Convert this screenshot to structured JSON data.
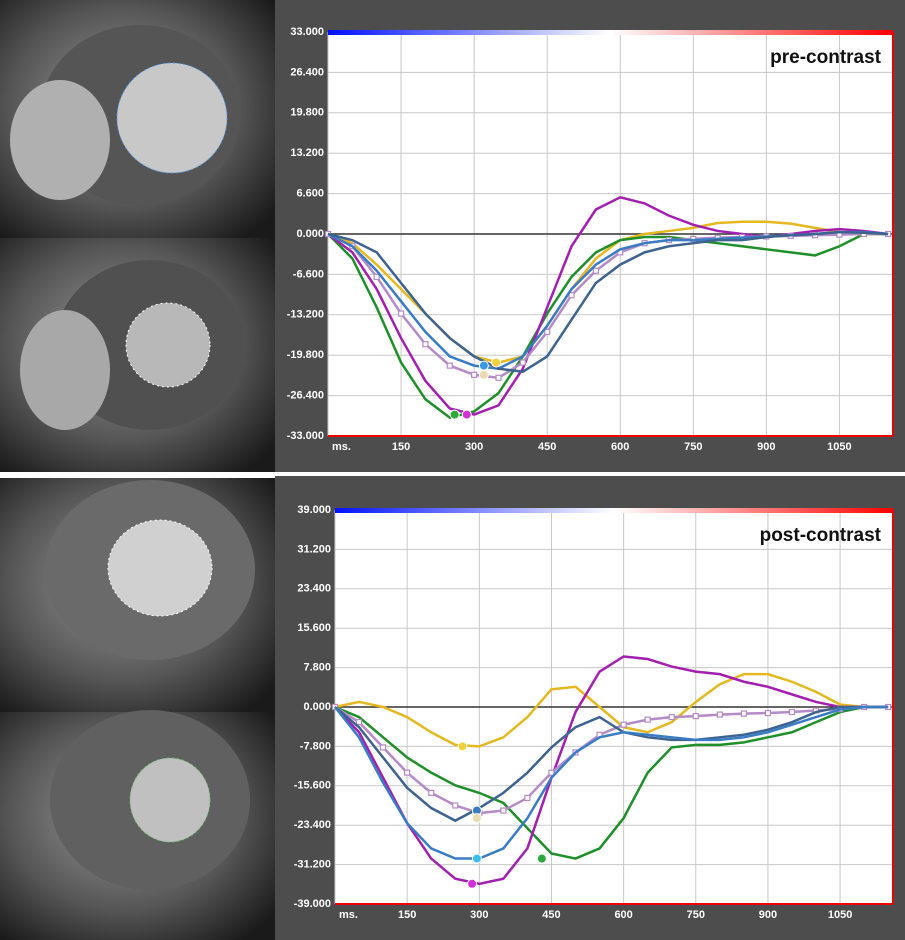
{
  "chart_data": [
    {
      "type": "line",
      "annotation": "pre-contrast",
      "x": [
        0,
        50,
        100,
        150,
        200,
        250,
        300,
        350,
        400,
        450,
        500,
        550,
        600,
        650,
        700,
        750,
        800,
        850,
        900,
        950,
        1000,
        1050,
        1100,
        1150
      ],
      "xlim": [
        0,
        1160
      ],
      "xticks": [
        {
          "value": 0,
          "label": "ms."
        },
        150,
        300,
        450,
        600,
        750,
        900,
        1050
      ],
      "ylim": [
        -33,
        33
      ],
      "yticks": [
        {
          "value": 33,
          "label": "33.000"
        },
        {
          "value": 26.4,
          "label": "26.400"
        },
        {
          "value": 19.8,
          "label": "19.800"
        },
        {
          "value": 13.2,
          "label": "13.200"
        },
        {
          "value": 6.6,
          "label": "6.600"
        },
        {
          "value": 0,
          "label": "0.000"
        },
        {
          "value": -6.6,
          "label": "-6.600"
        },
        {
          "value": -13.2,
          "label": "-13.200"
        },
        {
          "value": -19.8,
          "label": "-19.800"
        },
        {
          "value": -26.4,
          "label": "-26.400"
        },
        {
          "value": -33,
          "label": "-33.000"
        }
      ],
      "grid": true,
      "series": [
        {
          "color": "#e6b820",
          "values": [
            0,
            -1.5,
            -5,
            -9,
            -13,
            -17,
            -20,
            -21,
            -20,
            -15,
            -9,
            -4,
            -1,
            0,
            0.5,
            1,
            1.8,
            2,
            2,
            1.7,
            1,
            0.3,
            0,
            0
          ]
        },
        {
          "color": "#1f8f2a",
          "values": [
            0,
            -4,
            -12,
            -21,
            -27,
            -30,
            -29,
            -26,
            -20,
            -13,
            -7,
            -3,
            -1,
            -0.5,
            -0.5,
            -1,
            -1.5,
            -2,
            -2.5,
            -3,
            -3.5,
            -2,
            0,
            0
          ]
        },
        {
          "color": "#a21fb0",
          "values": [
            0,
            -3,
            -9,
            -17,
            -24,
            -28.5,
            -29.5,
            -28,
            -22,
            -12,
            -2,
            4,
            6,
            5,
            3,
            1.5,
            0.5,
            0,
            -0.5,
            0,
            0.5,
            0.8,
            0.5,
            0
          ]
        },
        {
          "color": "#b48ac8",
          "point_markers": true,
          "values": [
            0,
            -2,
            -7,
            -13,
            -18,
            -21.5,
            -23,
            -23.5,
            -21,
            -16,
            -10,
            -6,
            -3,
            -1.5,
            -1,
            -0.8,
            -0.6,
            -0.5,
            -0.4,
            -0.3,
            -0.2,
            -0.1,
            0,
            0
          ]
        },
        {
          "color": "#3a7cc4",
          "values": [
            0,
            -2,
            -6,
            -11,
            -16,
            -20,
            -21.5,
            -22,
            -20,
            -15,
            -9,
            -5,
            -2.5,
            -1.5,
            -1,
            -1,
            -0.8,
            -0.6,
            -0.4,
            -0.2,
            0,
            0.3,
            0.3,
            0
          ]
        },
        {
          "color": "#3d6390",
          "values": [
            0,
            -1,
            -3,
            -8,
            -13,
            -17,
            -20,
            -22,
            -22.5,
            -20,
            -14,
            -8,
            -5,
            -3,
            -2,
            -1.5,
            -1,
            -1,
            -0.5,
            -0.2,
            0,
            0.3,
            0.2,
            0
          ]
        }
      ],
      "markers": [
        {
          "x": 345,
          "y": -21,
          "color": "#f2d23a"
        },
        {
          "x": 260,
          "y": -29.5,
          "color": "#2ea83a"
        },
        {
          "x": 285,
          "y": -29.5,
          "color": "#d030d8"
        },
        {
          "x": 320,
          "y": -21.5,
          "color": "#3a9ae0"
        },
        {
          "x": 320,
          "y": -23,
          "color": "#e8dcb0"
        }
      ]
    },
    {
      "type": "line",
      "annotation": "post-contrast",
      "x": [
        0,
        50,
        100,
        150,
        200,
        250,
        300,
        350,
        400,
        450,
        500,
        550,
        600,
        650,
        700,
        750,
        800,
        850,
        900,
        950,
        1000,
        1050,
        1100,
        1150
      ],
      "xlim": [
        0,
        1160
      ],
      "xticks": [
        {
          "value": 0,
          "label": "ms."
        },
        150,
        300,
        450,
        600,
        750,
        900,
        1050
      ],
      "ylim": [
        -39,
        39
      ],
      "yticks": [
        {
          "value": 39,
          "label": "39.000"
        },
        {
          "value": 31.2,
          "label": "31.200"
        },
        {
          "value": 23.4,
          "label": "23.400"
        },
        {
          "value": 15.6,
          "label": "15.600"
        },
        {
          "value": 7.8,
          "label": "7.800"
        },
        {
          "value": 0,
          "label": "0.000"
        },
        {
          "value": -7.8,
          "label": "-7.800"
        },
        {
          "value": -15.6,
          "label": "-15.600"
        },
        {
          "value": -23.4,
          "label": "-23.400"
        },
        {
          "value": -31.2,
          "label": "-31.200"
        },
        {
          "value": -39,
          "label": "-39.000"
        }
      ],
      "grid": true,
      "series": [
        {
          "color": "#e6b820",
          "values": [
            0,
            1,
            0,
            -2,
            -5,
            -7.5,
            -7.8,
            -6,
            -2,
            3.5,
            4,
            0,
            -4,
            -5,
            -3,
            1,
            4.5,
            6.5,
            6.5,
            5,
            3,
            0.5,
            0,
            0
          ]
        },
        {
          "color": "#1f8f2a",
          "values": [
            0,
            -2,
            -6,
            -10,
            -13,
            -15.5,
            -17,
            -19,
            -24,
            -29,
            -30,
            -28,
            -22,
            -13,
            -8,
            -7.5,
            -7.5,
            -7,
            -6,
            -5,
            -3,
            -1,
            0,
            0
          ]
        },
        {
          "color": "#a21fb0",
          "values": [
            0,
            -5,
            -14,
            -23,
            -30,
            -34,
            -35,
            -34,
            -28,
            -14,
            -1,
            7,
            10,
            9.5,
            8,
            7,
            6.5,
            5,
            4,
            2.5,
            1,
            0,
            0,
            0
          ]
        },
        {
          "color": "#b48ac8",
          "point_markers": true,
          "values": [
            0,
            -3,
            -8,
            -13,
            -17,
            -19.5,
            -21,
            -20.5,
            -18,
            -13,
            -9,
            -5.5,
            -3.5,
            -2.5,
            -2,
            -1.8,
            -1.5,
            -1.3,
            -1.2,
            -1,
            -0.7,
            -0.4,
            0,
            0
          ]
        },
        {
          "color": "#3d6390",
          "values": [
            0,
            -4,
            -10,
            -16,
            -20,
            -22.5,
            -20,
            -17,
            -13,
            -8,
            -4,
            -2,
            -5,
            -6,
            -6.5,
            -6.5,
            -6,
            -5.5,
            -4.5,
            -3,
            -1,
            0,
            0,
            0
          ]
        },
        {
          "color": "#3a7cc4",
          "values": [
            0,
            -6,
            -15,
            -23,
            -28,
            -30,
            -30,
            -28,
            -22,
            -14,
            -9,
            -6,
            -5,
            -5.5,
            -6,
            -6.5,
            -6.5,
            -6,
            -5,
            -3.5,
            -2,
            -0.5,
            0,
            0
          ]
        }
      ],
      "markers": [
        {
          "x": 265,
          "y": -7.8,
          "color": "#f2d23a"
        },
        {
          "x": 295,
          "y": -20.5,
          "color": "#3a7cc4"
        },
        {
          "x": 295,
          "y": -22,
          "color": "#e8dcb0"
        },
        {
          "x": 295,
          "y": -30,
          "color": "#3ac0e8"
        },
        {
          "x": 430,
          "y": -30,
          "color": "#2ea83a"
        },
        {
          "x": 285,
          "y": -35,
          "color": "#d030d8"
        }
      ]
    }
  ]
}
